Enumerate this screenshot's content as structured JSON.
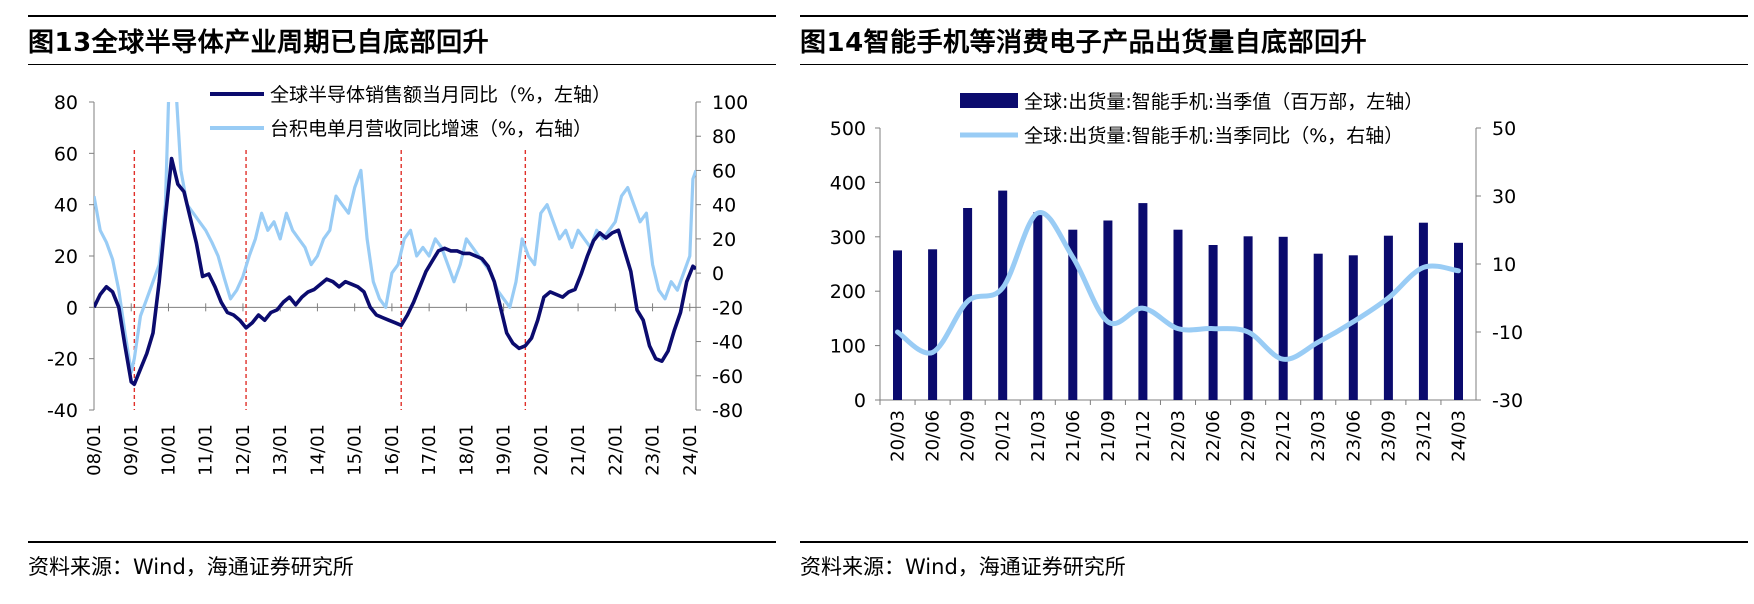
{
  "panels": [
    {
      "title": "图13全球半导体产业周期已自底部回升",
      "source": "资料来源：Wind，海通证券研究所"
    },
    {
      "title": "图14智能手机等消费电子产品出货量自底部回升",
      "source": "资料来源：Wind，海通证券研究所"
    }
  ],
  "colors": {
    "dark": "#0b0b6e",
    "light": "#99ccf5",
    "ref": "#e0302a",
    "axis": "#7f7f7f"
  },
  "chart_data": [
    {
      "type": "line",
      "x_tick_labels": [
        "08/01",
        "09/01",
        "10/01",
        "11/01",
        "12/01",
        "13/01",
        "14/01",
        "15/01",
        "16/01",
        "17/01",
        "18/01",
        "19/01",
        "20/01",
        "21/01",
        "22/01",
        "23/01",
        "24/01"
      ],
      "x_start": "2008-01",
      "x_end": "2024-03",
      "y_left": {
        "min": -40,
        "max": 80,
        "ticks": [
          -40,
          -20,
          0,
          20,
          40,
          60,
          80
        ]
      },
      "y_right": {
        "min": -80,
        "max": 100,
        "ticks": [
          -80,
          -60,
          -40,
          -20,
          0,
          20,
          40,
          60,
          80,
          100
        ]
      },
      "reference_lines_x": [
        "2009-02",
        "2012-02",
        "2016-04",
        "2019-08"
      ],
      "legend_position": "top-center",
      "series": [
        {
          "name": "全球半导体销售额当月同比（%，左轴）",
          "axis": "left",
          "points": [
            [
              "2008-01",
              0
            ],
            [
              "2008-03",
              5
            ],
            [
              "2008-05",
              8
            ],
            [
              "2008-07",
              6
            ],
            [
              "2008-09",
              0
            ],
            [
              "2008-11",
              -15
            ],
            [
              "2009-01",
              -29
            ],
            [
              "2009-02",
              -30
            ],
            [
              "2009-04",
              -24
            ],
            [
              "2009-06",
              -18
            ],
            [
              "2009-08",
              -10
            ],
            [
              "2009-10",
              10
            ],
            [
              "2009-12",
              35
            ],
            [
              "2010-02",
              58
            ],
            [
              "2010-04",
              48
            ],
            [
              "2010-06",
              45
            ],
            [
              "2010-08",
              35
            ],
            [
              "2010-10",
              25
            ],
            [
              "2010-12",
              12
            ],
            [
              "2011-02",
              13
            ],
            [
              "2011-04",
              8
            ],
            [
              "2011-06",
              2
            ],
            [
              "2011-08",
              -2
            ],
            [
              "2011-10",
              -3
            ],
            [
              "2011-12",
              -5
            ],
            [
              "2012-02",
              -8
            ],
            [
              "2012-04",
              -6
            ],
            [
              "2012-06",
              -3
            ],
            [
              "2012-08",
              -5
            ],
            [
              "2012-10",
              -2
            ],
            [
              "2012-12",
              -1
            ],
            [
              "2013-02",
              2
            ],
            [
              "2013-04",
              4
            ],
            [
              "2013-06",
              1
            ],
            [
              "2013-08",
              4
            ],
            [
              "2013-10",
              6
            ],
            [
              "2013-12",
              7
            ],
            [
              "2014-02",
              9
            ],
            [
              "2014-04",
              11
            ],
            [
              "2014-06",
              10
            ],
            [
              "2014-08",
              8
            ],
            [
              "2014-10",
              10
            ],
            [
              "2014-12",
              9
            ],
            [
              "2015-02",
              8
            ],
            [
              "2015-04",
              6
            ],
            [
              "2015-06",
              0
            ],
            [
              "2015-08",
              -3
            ],
            [
              "2015-10",
              -4
            ],
            [
              "2015-12",
              -5
            ],
            [
              "2016-02",
              -6
            ],
            [
              "2016-04",
              -7
            ],
            [
              "2016-06",
              -3
            ],
            [
              "2016-08",
              2
            ],
            [
              "2016-10",
              8
            ],
            [
              "2016-12",
              14
            ],
            [
              "2017-02",
              18
            ],
            [
              "2017-04",
              22
            ],
            [
              "2017-06",
              23
            ],
            [
              "2017-08",
              22
            ],
            [
              "2017-10",
              22
            ],
            [
              "2017-12",
              21
            ],
            [
              "2018-02",
              21
            ],
            [
              "2018-04",
              20
            ],
            [
              "2018-06",
              19
            ],
            [
              "2018-08",
              16
            ],
            [
              "2018-10",
              10
            ],
            [
              "2018-12",
              0
            ],
            [
              "2019-02",
              -10
            ],
            [
              "2019-04",
              -14
            ],
            [
              "2019-06",
              -16
            ],
            [
              "2019-08",
              -15
            ],
            [
              "2019-10",
              -12
            ],
            [
              "2019-12",
              -5
            ],
            [
              "2020-02",
              4
            ],
            [
              "2020-04",
              6
            ],
            [
              "2020-06",
              5
            ],
            [
              "2020-08",
              4
            ],
            [
              "2020-10",
              6
            ],
            [
              "2020-12",
              7
            ],
            [
              "2021-02",
              13
            ],
            [
              "2021-04",
              20
            ],
            [
              "2021-06",
              26
            ],
            [
              "2021-08",
              29
            ],
            [
              "2021-10",
              27
            ],
            [
              "2021-12",
              29
            ],
            [
              "2022-02",
              30
            ],
            [
              "2022-04",
              22
            ],
            [
              "2022-06",
              14
            ],
            [
              "2022-08",
              -1
            ],
            [
              "2022-10",
              -5
            ],
            [
              "2022-12",
              -15
            ],
            [
              "2023-02",
              -20
            ],
            [
              "2023-04",
              -21
            ],
            [
              "2023-06",
              -17
            ],
            [
              "2023-08",
              -9
            ],
            [
              "2023-10",
              -2
            ],
            [
              "2023-12",
              10
            ],
            [
              "2024-02",
              16
            ],
            [
              "2024-03",
              15
            ]
          ]
        },
        {
          "name": "台积电单月营收同比增速（%，右轴）",
          "axis": "right",
          "points": [
            [
              "2008-01",
              45
            ],
            [
              "2008-03",
              25
            ],
            [
              "2008-05",
              18
            ],
            [
              "2008-07",
              8
            ],
            [
              "2008-09",
              -10
            ],
            [
              "2008-11",
              -35
            ],
            [
              "2009-01",
              -58
            ],
            [
              "2009-02",
              -50
            ],
            [
              "2009-04",
              -25
            ],
            [
              "2009-06",
              -15
            ],
            [
              "2009-08",
              -5
            ],
            [
              "2009-10",
              5
            ],
            [
              "2009-12",
              40
            ],
            [
              "2010-01",
              100
            ],
            [
              "2010-03",
              120
            ],
            [
              "2010-05",
              60
            ],
            [
              "2010-07",
              40
            ],
            [
              "2010-09",
              35
            ],
            [
              "2010-11",
              30
            ],
            [
              "2011-01",
              25
            ],
            [
              "2011-03",
              18
            ],
            [
              "2011-05",
              10
            ],
            [
              "2011-07",
              -3
            ],
            [
              "2011-09",
              -15
            ],
            [
              "2011-11",
              -10
            ],
            [
              "2012-01",
              -2
            ],
            [
              "2012-03",
              10
            ],
            [
              "2012-05",
              20
            ],
            [
              "2012-07",
              35
            ],
            [
              "2012-09",
              25
            ],
            [
              "2012-11",
              30
            ],
            [
              "2013-01",
              20
            ],
            [
              "2013-03",
              35
            ],
            [
              "2013-05",
              25
            ],
            [
              "2013-07",
              20
            ],
            [
              "2013-09",
              15
            ],
            [
              "2013-11",
              5
            ],
            [
              "2014-01",
              10
            ],
            [
              "2014-03",
              20
            ],
            [
              "2014-05",
              25
            ],
            [
              "2014-07",
              45
            ],
            [
              "2014-09",
              40
            ],
            [
              "2014-11",
              35
            ],
            [
              "2015-01",
              50
            ],
            [
              "2015-03",
              60
            ],
            [
              "2015-05",
              20
            ],
            [
              "2015-07",
              -5
            ],
            [
              "2015-09",
              -15
            ],
            [
              "2015-11",
              -20
            ],
            [
              "2016-01",
              0
            ],
            [
              "2016-03",
              5
            ],
            [
              "2016-05",
              20
            ],
            [
              "2016-07",
              25
            ],
            [
              "2016-09",
              10
            ],
            [
              "2016-11",
              15
            ],
            [
              "2017-01",
              10
            ],
            [
              "2017-03",
              20
            ],
            [
              "2017-05",
              15
            ],
            [
              "2017-07",
              5
            ],
            [
              "2017-09",
              -5
            ],
            [
              "2017-11",
              5
            ],
            [
              "2018-01",
              20
            ],
            [
              "2018-03",
              15
            ],
            [
              "2018-05",
              10
            ],
            [
              "2018-07",
              5
            ],
            [
              "2018-09",
              0
            ],
            [
              "2018-11",
              -10
            ],
            [
              "2019-01",
              -15
            ],
            [
              "2019-03",
              -20
            ],
            [
              "2019-05",
              -5
            ],
            [
              "2019-07",
              20
            ],
            [
              "2019-09",
              10
            ],
            [
              "2019-11",
              5
            ],
            [
              "2020-01",
              35
            ],
            [
              "2020-03",
              40
            ],
            [
              "2020-05",
              30
            ],
            [
              "2020-07",
              20
            ],
            [
              "2020-09",
              25
            ],
            [
              "2020-11",
              15
            ],
            [
              "2021-01",
              25
            ],
            [
              "2021-03",
              20
            ],
            [
              "2021-05",
              15
            ],
            [
              "2021-07",
              25
            ],
            [
              "2021-09",
              20
            ],
            [
              "2021-11",
              25
            ],
            [
              "2022-01",
              30
            ],
            [
              "2022-03",
              45
            ],
            [
              "2022-05",
              50
            ],
            [
              "2022-07",
              40
            ],
            [
              "2022-09",
              30
            ],
            [
              "2022-11",
              35
            ],
            [
              "2023-01",
              5
            ],
            [
              "2023-03",
              -10
            ],
            [
              "2023-05",
              -15
            ],
            [
              "2023-07",
              -5
            ],
            [
              "2023-09",
              -10
            ],
            [
              "2023-11",
              0
            ],
            [
              "2024-01",
              10
            ],
            [
              "2024-02",
              55
            ],
            [
              "2024-03",
              60
            ]
          ]
        }
      ]
    },
    {
      "type": "bar",
      "categories": [
        "20/03",
        "20/06",
        "20/09",
        "20/12",
        "21/03",
        "21/06",
        "21/09",
        "21/12",
        "22/03",
        "22/06",
        "22/09",
        "22/12",
        "23/03",
        "23/06",
        "23/09",
        "23/12",
        "24/03"
      ],
      "y_left": {
        "min": 0,
        "max": 500,
        "ticks": [
          0,
          100,
          200,
          300,
          400,
          500
        ]
      },
      "y_right": {
        "min": -30,
        "max": 50,
        "ticks": [
          -30,
          -10,
          10,
          30,
          50
        ]
      },
      "legend_position": "top-center",
      "series": [
        {
          "name": "全球:出货量:智能手机:当季值（百万部，左轴）",
          "kind": "bar",
          "axis": "left",
          "values": [
            275,
            277,
            353,
            385,
            345,
            313,
            330,
            362,
            313,
            285,
            301,
            300,
            269,
            266,
            302,
            326,
            289
          ]
        },
        {
          "name": "全球:出货量:智能手机:当季同比（%，右轴）",
          "kind": "line",
          "axis": "right",
          "values": [
            -10,
            -16,
            -1,
            3,
            25,
            12,
            -7,
            -3,
            -9,
            -9,
            -10,
            -18,
            -13,
            -7,
            0,
            9,
            8
          ]
        }
      ]
    }
  ]
}
